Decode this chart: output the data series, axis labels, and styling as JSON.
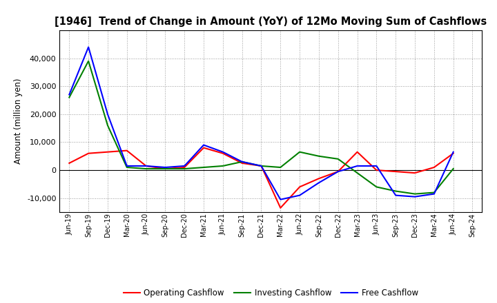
{
  "title": "[1946]  Trend of Change in Amount (YoY) of 12Mo Moving Sum of Cashflows",
  "ylabel": "Amount (million yen)",
  "x_labels": [
    "Jun-19",
    "Sep-19",
    "Dec-19",
    "Mar-20",
    "Jun-20",
    "Sep-20",
    "Dec-20",
    "Mar-21",
    "Jun-21",
    "Sep-21",
    "Dec-21",
    "Mar-22",
    "Jun-22",
    "Sep-22",
    "Dec-22",
    "Mar-23",
    "Jun-23",
    "Sep-23",
    "Dec-23",
    "Mar-24",
    "Jun-24",
    "Sep-24"
  ],
  "operating": [
    2500,
    6000,
    6500,
    7000,
    1500,
    500,
    1000,
    8000,
    6000,
    2500,
    1500,
    -13500,
    -6000,
    -3000,
    -500,
    6500,
    0,
    -500,
    -1000,
    1000,
    6000,
    null
  ],
  "investing": [
    26000,
    39000,
    16000,
    1000,
    500,
    500,
    500,
    1000,
    1500,
    3000,
    1500,
    1000,
    6500,
    5000,
    4000,
    -1000,
    -6000,
    -7500,
    -8500,
    -8000,
    500,
    null
  ],
  "free": [
    27000,
    44000,
    20000,
    1500,
    1500,
    1000,
    1500,
    9000,
    6500,
    3000,
    1500,
    -10500,
    -9000,
    -4500,
    -500,
    1500,
    1500,
    -9000,
    -9500,
    -8500,
    6500,
    null
  ],
  "operating_color": "#FF0000",
  "investing_color": "#008000",
  "free_color": "#0000FF",
  "ylim": [
    -15000,
    50000
  ],
  "yticks": [
    -10000,
    0,
    10000,
    20000,
    30000,
    40000
  ],
  "background_color": "#FFFFFF",
  "grid_color": "#999999"
}
